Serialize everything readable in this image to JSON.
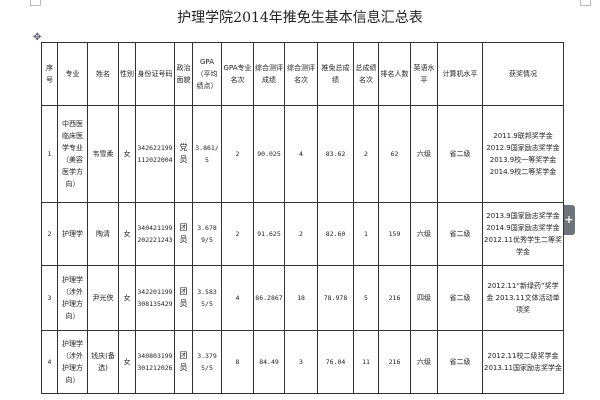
{
  "title": "护理学院2014年推免生基本信息汇总表",
  "columns": [
    "序号",
    "专业",
    "姓名",
    "性别",
    "身份证号码",
    "政治面貌",
    "GPA（平均绩点）",
    "GPA专业名次",
    "综合测评成绩",
    "综合测评名次",
    "推免总成绩",
    "总成绩名次",
    "排名人数",
    "英语水平",
    "计算机水平",
    "获奖情况"
  ],
  "rows": [
    {
      "no": "1",
      "major": "中西医临床医学专业（美容医学方向）",
      "name": "韦雪柔",
      "gender": "女",
      "id": "342622199112022004",
      "political": "党员",
      "gpa": "3.861/5",
      "gpa_rank": "2",
      "eval_score": "90.025",
      "eval_rank": "4",
      "total": "83.62",
      "total_rank": "2",
      "count": "62",
      "english": "六级",
      "computer": "省二级",
      "awards": [
        "2011.9联邦奖学金",
        "2012.9国家励志奖学金",
        "2013.9校一等奖学金",
        "2014.9校二等奖学金"
      ]
    },
    {
      "no": "2",
      "major": "护理学",
      "name": "陶清",
      "gender": "女",
      "id": "340421199202221243",
      "political": "团员",
      "gpa": "3.6789/5",
      "gpa_rank": "2",
      "eval_score": "91.625",
      "eval_rank": "2",
      "total": "82.60",
      "total_rank": "1",
      "count": "159",
      "english": "六级",
      "computer": "省二级",
      "awards": [
        "2013.9国家励志奖学金",
        "2014.9国家励志奖学金",
        "2012.11优秀学生二等奖学金"
      ]
    },
    {
      "no": "3",
      "major": "护理学（涉外护理方向）",
      "name": "尹光侠",
      "gender": "女",
      "id": "342201199308135429",
      "political": "团员",
      "gpa": "3.5835/5",
      "gpa_rank": "4",
      "eval_score": "86.2867",
      "eval_rank": "18",
      "total": "78.978",
      "total_rank": "5",
      "count": "216",
      "english": "四级",
      "computer": "省二级",
      "awards": [
        "2012.11“新绿药”奖学金 2013.11文体活动单项奖"
      ]
    },
    {
      "no": "4",
      "major": "护理学（涉外护理方向）",
      "name": "钱庆(备选)",
      "gender": "女",
      "id": "340803199301212026",
      "political": "团员",
      "gpa": "3.3795/5",
      "gpa_rank": "8",
      "eval_score": "84.49",
      "eval_rank": "3",
      "total": "76.04",
      "total_rank": "11",
      "count": "216",
      "english": "六级",
      "computer": "省二级",
      "awards": [
        "2012.11校二级奖学金",
        "2013.11国家励志奖学金"
      ]
    }
  ],
  "icons": {
    "move_handle": "move-cross-icon",
    "side_tab": "plus-icon"
  },
  "side_tab_label": "+"
}
